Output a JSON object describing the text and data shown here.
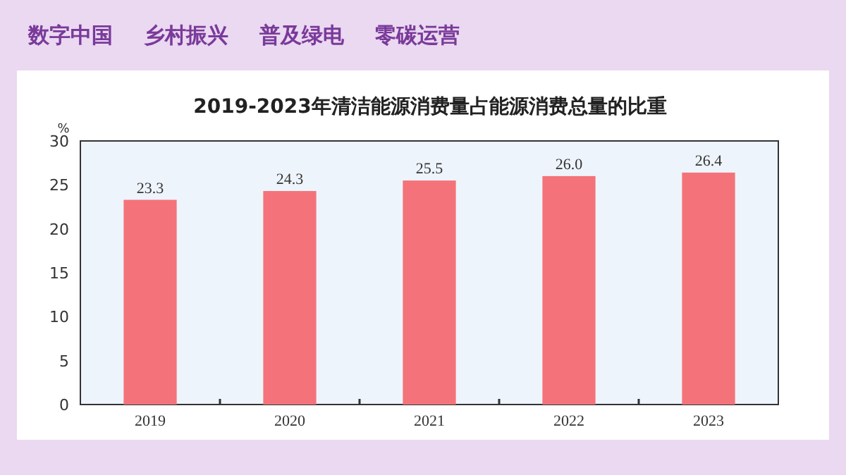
{
  "chart_data": {
    "type": "bar",
    "title": "2019-2023年清洁能源消费量占能源消费总量的比重",
    "ylabel": "%",
    "categories": [
      "2019",
      "2020",
      "2021",
      "2022",
      "2023"
    ],
    "values": [
      23.3,
      24.3,
      25.5,
      26.0,
      26.4
    ],
    "value_labels": [
      "23.3",
      "24.3",
      "25.5",
      "26.0",
      "26.4"
    ],
    "color": "#f4737a",
    "ylim": [
      0,
      30
    ],
    "yticks": [
      0,
      5,
      10,
      15,
      20,
      25,
      30
    ],
    "annotations": [
      "数字中国",
      "乡村振兴",
      "普及绿电",
      "零碳运营"
    ]
  }
}
